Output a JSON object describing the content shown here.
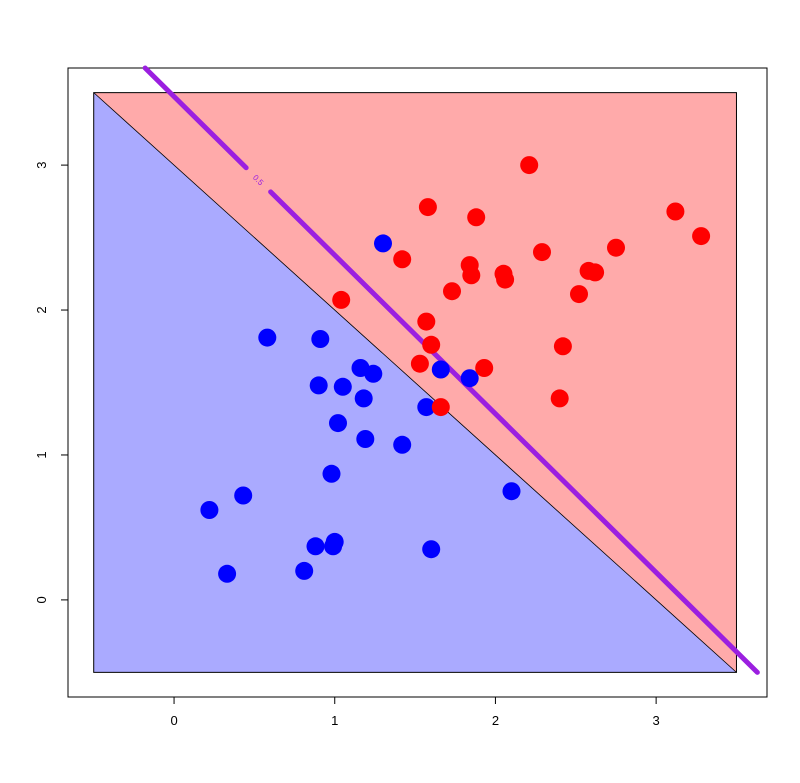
{
  "chart_data": {
    "type": "scatter",
    "title": "",
    "xlabel": "",
    "ylabel": "",
    "xlim": [
      -0.66,
      3.69
    ],
    "ylim": [
      -0.67,
      3.67
    ],
    "region_box": {
      "x": [
        -0.5,
        3.5
      ],
      "y": [
        -0.5,
        3.5
      ]
    },
    "x_ticks": [
      "0",
      "1",
      "2",
      "3"
    ],
    "y_ticks": [
      "0",
      "1",
      "2",
      "3"
    ],
    "grid": false,
    "legend": "none",
    "decision_boundary": {
      "equation": "x + y = 3",
      "region_below_color": "#aaaaff",
      "region_above_color": "#ffaaaa",
      "boundary_color": "#000000"
    },
    "contour_line": {
      "label": "0.5",
      "color": "#9b1fe0",
      "points": [
        [
          -0.18,
          3.67
        ],
        [
          3.63,
          -0.5
        ]
      ]
    },
    "series": [
      {
        "color": "#0000ff",
        "points": [
          [
            0.22,
            0.62
          ],
          [
            0.33,
            0.18
          ],
          [
            0.43,
            0.72
          ],
          [
            0.58,
            1.81
          ],
          [
            0.81,
            0.2
          ],
          [
            0.88,
            0.37
          ],
          [
            0.9,
            1.48
          ],
          [
            0.91,
            1.8
          ],
          [
            0.98,
            0.87
          ],
          [
            0.99,
            0.37
          ],
          [
            1.0,
            0.4
          ],
          [
            1.02,
            1.22
          ],
          [
            1.05,
            1.47
          ],
          [
            1.16,
            1.6
          ],
          [
            1.18,
            1.39
          ],
          [
            1.19,
            1.11
          ],
          [
            1.24,
            1.56
          ],
          [
            1.3,
            2.46
          ],
          [
            1.42,
            1.07
          ],
          [
            1.57,
            1.33
          ],
          [
            1.6,
            0.35
          ],
          [
            1.66,
            1.59
          ],
          [
            1.84,
            1.53
          ],
          [
            2.1,
            0.75
          ]
        ]
      },
      {
        "color": "#ff0000",
        "points": [
          [
            1.04,
            2.07
          ],
          [
            1.42,
            2.35
          ],
          [
            1.53,
            1.63
          ],
          [
            1.57,
            1.92
          ],
          [
            1.58,
            2.71
          ],
          [
            1.6,
            1.76
          ],
          [
            1.66,
            1.33
          ],
          [
            1.73,
            2.13
          ],
          [
            1.84,
            2.31
          ],
          [
            1.85,
            2.24
          ],
          [
            1.88,
            2.64
          ],
          [
            1.93,
            1.6
          ],
          [
            2.05,
            2.25
          ],
          [
            2.06,
            2.21
          ],
          [
            2.21,
            3.0
          ],
          [
            2.29,
            2.4
          ],
          [
            2.4,
            1.39
          ],
          [
            2.42,
            1.75
          ],
          [
            2.52,
            2.11
          ],
          [
            2.58,
            2.27
          ],
          [
            2.62,
            2.26
          ],
          [
            2.75,
            2.43
          ],
          [
            3.12,
            2.68
          ],
          [
            3.28,
            2.51
          ]
        ]
      }
    ]
  }
}
